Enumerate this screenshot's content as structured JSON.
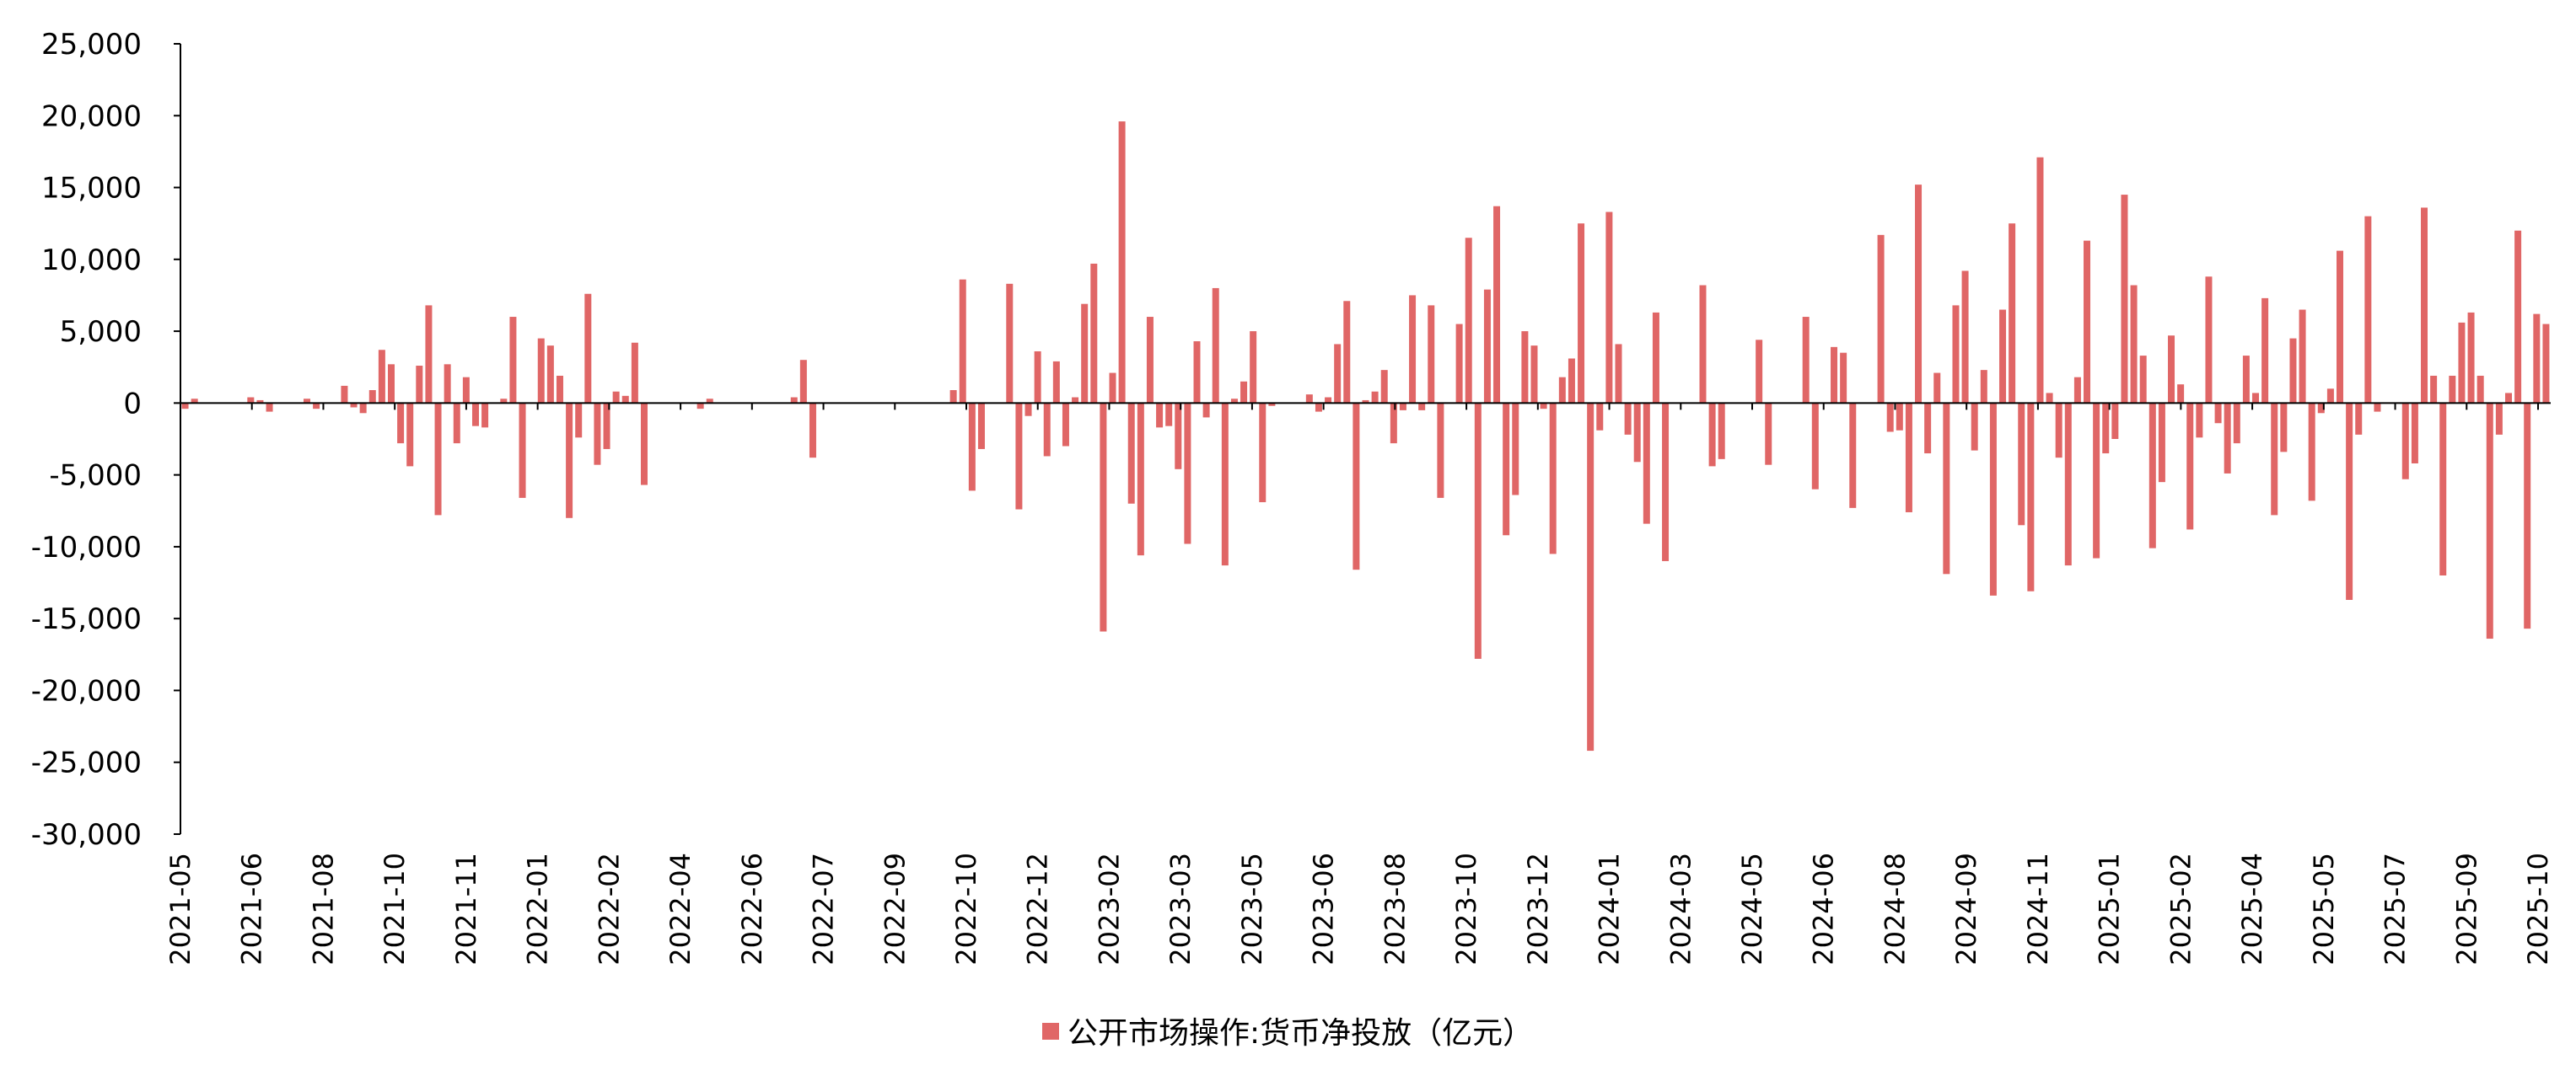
{
  "chart_data": {
    "type": "bar",
    "title": "",
    "xlabel": "",
    "ylabel": "",
    "ylim": [
      -30000,
      25000
    ],
    "y_ticks": [
      25000,
      20000,
      15000,
      10000,
      5000,
      0,
      -5000,
      -10000,
      -15000,
      -20000,
      -25000,
      -30000
    ],
    "y_tick_labels": [
      "25,000",
      "20,000",
      "15,000",
      "10,000",
      "5,000",
      "0",
      "-5,000",
      "-10,000",
      "-15,000",
      "-20,000",
      "-25,000",
      "-30,000"
    ],
    "x_tick_labels": [
      "2021-05",
      "2021-06",
      "2021-08",
      "2021-10",
      "2021-11",
      "2022-01",
      "2022-02",
      "2022-04",
      "2022-06",
      "2022-07",
      "2022-09",
      "2022-10",
      "2022-12",
      "2023-02",
      "2023-03",
      "2023-05",
      "2023-06",
      "2023-08",
      "2023-10",
      "2023-12",
      "2024-01",
      "2024-03",
      "2024-05",
      "2024-06",
      "2024-08",
      "2024-09",
      "2024-11",
      "2025-01",
      "2025-02",
      "2025-04",
      "2025-05",
      "2025-07",
      "2025-09",
      "2025-10"
    ],
    "legend": {
      "position": "bottom-center",
      "color": "#e06666"
    },
    "grid": false,
    "series": [
      {
        "name": "公开市场操作:货币净投放（亿元）",
        "color": "#e06666",
        "values": [
          -400,
          300,
          0,
          0,
          0,
          0,
          0,
          400,
          200,
          -600,
          0,
          0,
          0,
          300,
          -400,
          0,
          0,
          1200,
          -300,
          -700,
          900,
          3700,
          2700,
          -2800,
          -4400,
          2600,
          6800,
          -7800,
          2700,
          -2800,
          1800,
          -1600,
          -1700,
          0,
          300,
          6000,
          -6600,
          0,
          4500,
          4000,
          1900,
          -8000,
          -2400,
          7600,
          -4300,
          -3200,
          800,
          500,
          4200,
          -5700,
          0,
          0,
          0,
          0,
          0,
          -400,
          300,
          0,
          0,
          0,
          0,
          0,
          0,
          0,
          0,
          400,
          3000,
          -3800,
          0,
          0,
          0,
          0,
          0,
          0,
          0,
          0,
          0,
          0,
          0,
          0,
          0,
          0,
          900,
          8600,
          -6100,
          -3200,
          0,
          0,
          8300,
          -7400,
          -900,
          3600,
          -3700,
          2900,
          -3000,
          400,
          6900,
          9700,
          -15900,
          2100,
          19600,
          -7000,
          -10600,
          6000,
          -1700,
          -1600,
          -4600,
          -9800,
          4300,
          -1000,
          8000,
          -11300,
          300,
          1500,
          5000,
          -6900,
          -200,
          0,
          0,
          0,
          600,
          -600,
          400,
          4100,
          7100,
          -11600,
          200,
          800,
          2300,
          -2800,
          -500,
          7500,
          -500,
          6800,
          -6600,
          0,
          5500,
          11500,
          -17800,
          7900,
          13700,
          -9200,
          -6400,
          5000,
          4000,
          -400,
          -10500,
          1800,
          3100,
          12500,
          -24200,
          -1900,
          13300,
          4100,
          -2200,
          -4100,
          -8400,
          6300,
          -11000,
          0,
          0,
          0,
          8200,
          -4400,
          -3900,
          0,
          0,
          0,
          4400,
          -4300,
          0,
          0,
          0,
          6000,
          -6000,
          0,
          3900,
          3500,
          -7300,
          0,
          0,
          11700,
          -2000,
          -1900,
          -7600,
          15200,
          -3500,
          2100,
          -11900,
          6800,
          9200,
          -3300,
          2300,
          -13400,
          6500,
          12500,
          -8500,
          -13100,
          17100,
          700,
          -3800,
          -11300,
          1800,
          11300,
          -10800,
          -3500,
          -2500,
          14500,
          8200,
          3300,
          -10100,
          -5500,
          4700,
          1300,
          -8800,
          -2400,
          8800,
          -1400,
          -4900,
          -2800,
          3300,
          700,
          7300,
          -7800,
          -3400,
          4500,
          6500,
          -6800,
          -700,
          1000,
          10600,
          -13700,
          -2200,
          13000,
          -600,
          0,
          0,
          -5300,
          -4200,
          13600,
          1900,
          -12000,
          1900,
          5600,
          6300,
          1900,
          -16400,
          -2200,
          700,
          12000,
          -15700,
          6200,
          5500
        ]
      }
    ]
  }
}
